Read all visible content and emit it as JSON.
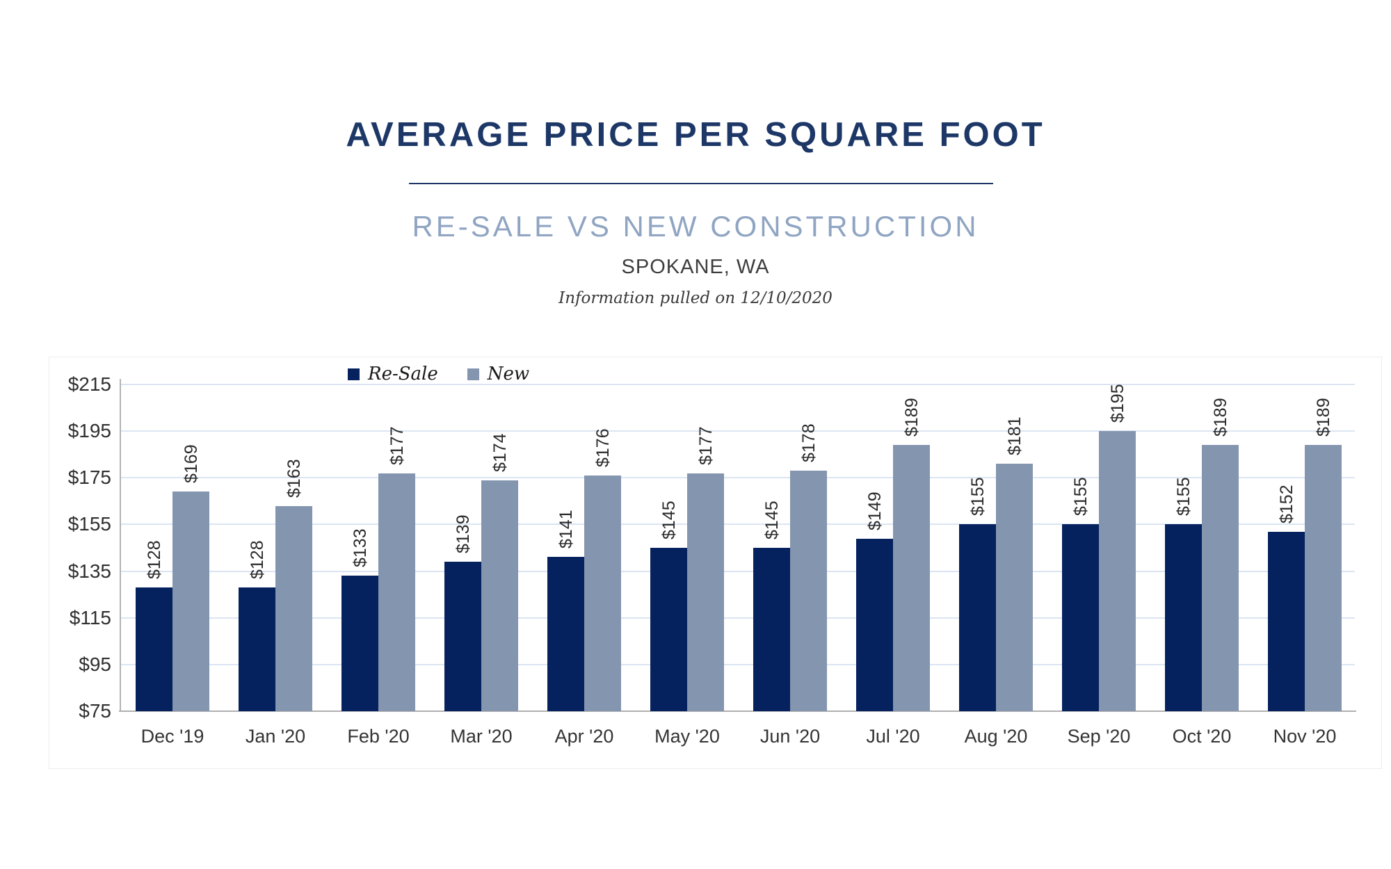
{
  "header": {
    "title": "AVERAGE PRICE PER SQUARE FOOT",
    "subtitle": "RE-SALE VS NEW CONSTRUCTION",
    "location": "SPOKANE, WA",
    "note": "Information pulled on 12/10/2020"
  },
  "legend": {
    "items": [
      {
        "label": "Re-Sale",
        "color": "#05215e"
      },
      {
        "label": "New",
        "color": "#8495af"
      }
    ]
  },
  "chart_data": {
    "type": "bar",
    "title": "AVERAGE PRICE PER SQUARE FOOT",
    "subtitle": "RE-SALE VS NEW CONSTRUCTION",
    "categories": [
      "Dec '19",
      "Jan '20",
      "Feb '20",
      "Mar '20",
      "Apr '20",
      "May '20",
      "Jun '20",
      "Jul '20",
      "Aug '20",
      "Sep '20",
      "Oct '20",
      "Nov '20"
    ],
    "series": [
      {
        "name": "Re-Sale",
        "color": "#05215e",
        "values": [
          128,
          128,
          133,
          139,
          141,
          145,
          145,
          149,
          155,
          155,
          155,
          152
        ]
      },
      {
        "name": "New",
        "color": "#8495af",
        "values": [
          169,
          163,
          177,
          174,
          176,
          177,
          178,
          189,
          181,
          195,
          189,
          189
        ]
      }
    ],
    "value_prefix": "$",
    "xlabel": "",
    "ylabel": "",
    "ylim": [
      75,
      215
    ],
    "yticks": [
      75,
      95,
      115,
      135,
      155,
      175,
      195,
      215
    ],
    "ytick_labels": [
      "$75",
      "$95",
      "$115",
      "$135",
      "$155",
      "$175",
      "$195",
      "$215"
    ],
    "grid": "horizontal-only",
    "legend_position": "top",
    "bar_value_labels": "rotated-90-above-bar"
  },
  "colors": {
    "title": "#1d3767",
    "subtitle": "#90a5c2",
    "grid_line": "#dbe5f2",
    "axis_line": "#b0b0b0",
    "resale_bar": "#05215e",
    "new_bar": "#8495af"
  }
}
